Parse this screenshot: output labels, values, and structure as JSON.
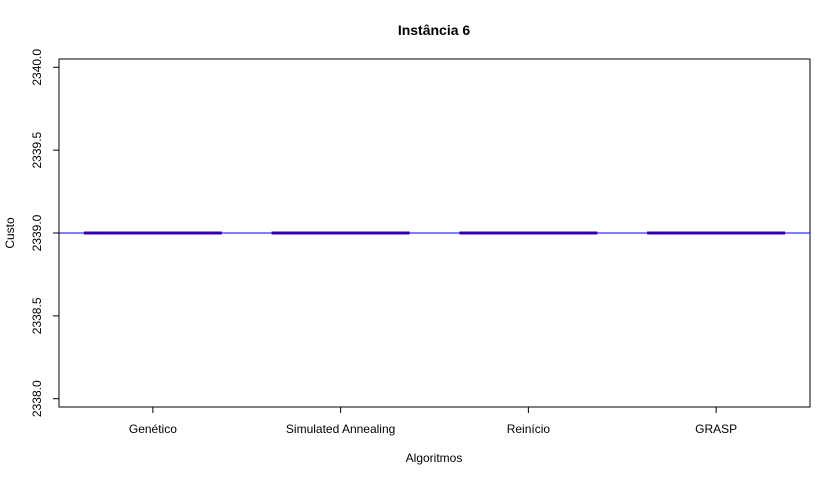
{
  "chart_data": {
    "type": "boxplot",
    "title": "Instância 6",
    "xlabel": "Algoritmos",
    "ylabel": "Custo",
    "categories": [
      "Genético",
      "Simulated Annealing",
      "Reinício",
      "GRASP"
    ],
    "values": [
      2339.0,
      2339.0,
      2339.0,
      2339.0
    ],
    "ylim": [
      2337.95,
      2340.05
    ],
    "yticks": [
      2338.0,
      2338.5,
      2339.0,
      2339.5,
      2340.0
    ],
    "ytick_labels": [
      "2338.0",
      "2338.5",
      "2339.0",
      "2339.5",
      "2340.0"
    ],
    "reference_line": {
      "y": 2339.0,
      "color": "#0000ff"
    },
    "median_color": "#5b005b",
    "grid": false,
    "legend": "none"
  }
}
